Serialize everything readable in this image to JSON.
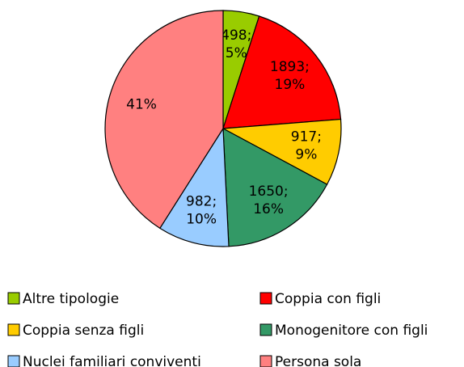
{
  "chart_data": {
    "type": "pie",
    "categories": [
      "Altre tipologie",
      "Coppia con figli",
      "Coppia senza figli",
      "Monogenitore con figli",
      "Nuclei familiari conviventi",
      "Persona sola"
    ],
    "values": [
      498,
      1893,
      917,
      1650,
      982,
      4130
    ],
    "value_labels": [
      "498;",
      "1893;",
      "917;",
      "1650;",
      "982;",
      null
    ],
    "percent_labels": [
      "5%",
      "19%",
      "9%",
      "16%",
      "10%",
      "41%"
    ],
    "colors": [
      "#99cc00",
      "#ff0000",
      "#ffcc00",
      "#339966",
      "#99ccff",
      "#ff8080"
    ],
    "legend": "bottom"
  }
}
